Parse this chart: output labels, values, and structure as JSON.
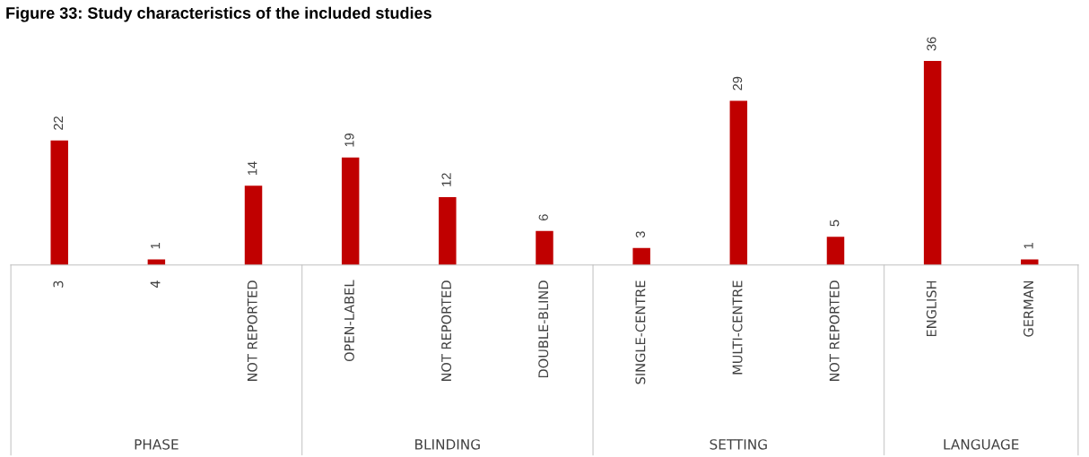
{
  "chart_data": {
    "type": "bar",
    "title": "Figure 33: Study characteristics of the included studies",
    "categories": [
      "3",
      "4",
      "NOT REPORTED",
      "OPEN-LABEL",
      "NOT REPORTED",
      "DOUBLE-BLIND",
      "SINGLE-CENTRE",
      "MULTI-CENTRE",
      "NOT REPORTED",
      "ENGLISH",
      "GERMAN"
    ],
    "values": [
      22,
      1,
      14,
      19,
      12,
      6,
      3,
      29,
      5,
      36,
      1
    ],
    "color": "#c00000",
    "data_labels": true,
    "grid": false,
    "legend": false,
    "annotations": [
      "PHASE",
      "BLINDING",
      "SETTING",
      "LANGUAGE"
    ]
  }
}
